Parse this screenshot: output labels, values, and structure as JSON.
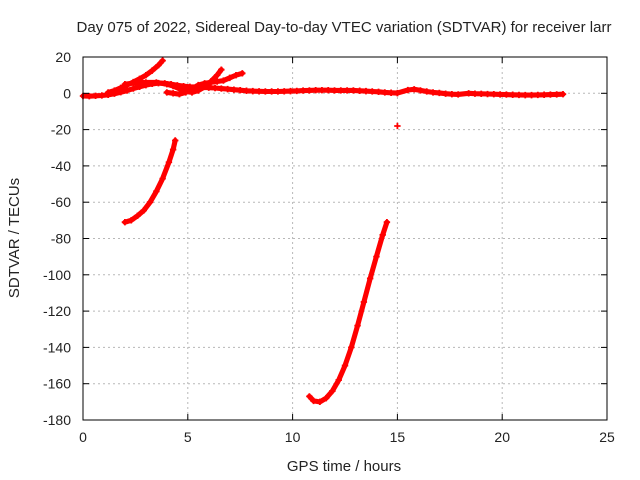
{
  "chart_data": {
    "type": "scatter",
    "title": "Day 075 of 2022, Sidereal Day-to-day VTEC variation (SDTVAR) for receiver larr",
    "xlabel": "GPS time / hours",
    "ylabel": "SDTVAR / TECUs",
    "xlim": [
      0,
      25
    ],
    "ylim": [
      -180,
      20
    ],
    "xticks": [
      "0",
      "5",
      "10",
      "15",
      "20",
      "25"
    ],
    "yticks": [
      "20",
      "0",
      "-20",
      "-40",
      "-60",
      "-80",
      "-100",
      "-120",
      "-140",
      "-160",
      "-180"
    ],
    "grid": true,
    "marker_color": "#ff0000",
    "series": [
      {
        "points": [
          [
            0.0,
            -1.5
          ],
          [
            0.3,
            -1.6
          ],
          [
            0.6,
            -1.4
          ],
          [
            0.9,
            -1.2
          ],
          [
            1.2,
            -0.8
          ],
          [
            1.5,
            -0.2
          ],
          [
            1.8,
            0.6
          ],
          [
            2.1,
            1.5
          ],
          [
            2.4,
            2.6
          ],
          [
            2.7,
            3.6
          ],
          [
            3.0,
            4.5
          ],
          [
            3.3,
            5.2
          ],
          [
            3.6,
            5.6
          ],
          [
            3.9,
            5.5
          ],
          [
            4.2,
            5.0
          ],
          [
            4.5,
            4.4
          ],
          [
            4.8,
            3.9
          ],
          [
            5.1,
            3.6
          ],
          [
            5.4,
            3.5
          ],
          [
            5.7,
            3.3
          ],
          [
            6.0,
            3.1
          ],
          [
            6.3,
            2.9
          ],
          [
            6.6,
            2.6
          ],
          [
            6.9,
            2.3
          ],
          [
            7.2,
            2.0
          ],
          [
            7.5,
            1.7
          ],
          [
            7.8,
            1.4
          ],
          [
            8.1,
            1.2
          ],
          [
            8.4,
            1.1
          ],
          [
            8.7,
            1.0
          ],
          [
            9.0,
            1.0
          ],
          [
            9.3,
            1.0
          ],
          [
            9.6,
            1.1
          ],
          [
            9.9,
            1.2
          ],
          [
            10.2,
            1.3
          ],
          [
            10.5,
            1.5
          ],
          [
            10.8,
            1.6
          ],
          [
            11.1,
            1.7
          ],
          [
            11.4,
            1.7
          ],
          [
            11.7,
            1.7
          ],
          [
            12.0,
            1.6
          ],
          [
            12.3,
            1.6
          ],
          [
            12.6,
            1.6
          ],
          [
            12.9,
            1.6
          ],
          [
            13.2,
            1.4
          ],
          [
            13.5,
            1.2
          ],
          [
            13.8,
            1.0
          ],
          [
            14.1,
            0.8
          ],
          [
            14.4,
            0.5
          ],
          [
            14.7,
            0.3
          ],
          [
            15.0,
            0.1
          ],
          [
            15.5,
            1.8
          ],
          [
            15.8,
            2.2
          ],
          [
            16.1,
            1.6
          ],
          [
            16.4,
            1.0
          ],
          [
            16.7,
            0.5
          ],
          [
            17.0,
            0.2
          ],
          [
            17.3,
            -0.2
          ],
          [
            17.6,
            -0.5
          ],
          [
            17.9,
            -0.6
          ],
          [
            18.4,
            0.0
          ],
          [
            18.7,
            -0.2
          ],
          [
            19.0,
            -0.3
          ],
          [
            19.3,
            -0.4
          ],
          [
            19.6,
            -0.5
          ],
          [
            19.9,
            -0.6
          ],
          [
            20.2,
            -0.7
          ],
          [
            20.5,
            -0.8
          ],
          [
            20.8,
            -0.9
          ],
          [
            21.1,
            -1.0
          ],
          [
            21.4,
            -1.0
          ],
          [
            21.7,
            -0.9
          ],
          [
            22.0,
            -0.8
          ],
          [
            22.3,
            -0.7
          ],
          [
            22.6,
            -0.6
          ],
          [
            22.9,
            -0.5
          ]
        ]
      },
      {
        "points": [
          [
            1.2,
            0.5
          ],
          [
            1.5,
            1.5
          ],
          [
            1.8,
            3.0
          ],
          [
            2.1,
            4.5
          ],
          [
            2.4,
            6.2
          ],
          [
            2.7,
            8.0
          ],
          [
            3.0,
            10.0
          ],
          [
            3.3,
            12.5
          ],
          [
            3.6,
            15.5
          ],
          [
            3.8,
            18.0
          ]
        ]
      },
      {
        "points": [
          [
            2.0,
            5.0
          ],
          [
            2.5,
            5.8
          ],
          [
            3.0,
            6.0
          ],
          [
            3.5,
            6.0
          ],
          [
            4.0,
            5.0
          ],
          [
            4.3,
            4.0
          ],
          [
            4.6,
            2.5
          ],
          [
            4.9,
            1.0
          ],
          [
            5.2,
            0.5
          ],
          [
            5.5,
            1.5
          ],
          [
            5.8,
            3.5
          ],
          [
            6.1,
            6.5
          ],
          [
            6.4,
            10.0
          ],
          [
            6.6,
            13.0
          ]
        ]
      },
      {
        "points": [
          [
            4.0,
            0.5
          ],
          [
            4.3,
            0.0
          ],
          [
            4.6,
            -0.5
          ],
          [
            4.9,
            0.5
          ],
          [
            5.2,
            2.5
          ],
          [
            5.5,
            4.5
          ],
          [
            5.8,
            5.5
          ],
          [
            6.1,
            6.0
          ],
          [
            6.4,
            6.5
          ],
          [
            6.7,
            7.0
          ],
          [
            7.0,
            8.5
          ],
          [
            7.3,
            10.0
          ],
          [
            7.6,
            11.0
          ]
        ]
      },
      {
        "points": [
          [
            2.0,
            -71.0
          ],
          [
            2.3,
            -70.0
          ],
          [
            2.6,
            -67.5
          ],
          [
            2.9,
            -64.5
          ],
          [
            3.2,
            -60.0
          ],
          [
            3.5,
            -54.0
          ],
          [
            3.8,
            -47.0
          ],
          [
            4.1,
            -38.0
          ],
          [
            4.3,
            -31.0
          ],
          [
            4.4,
            -26.0
          ]
        ]
      },
      {
        "points": [
          [
            10.8,
            -167.0
          ],
          [
            11.0,
            -169.5
          ],
          [
            11.3,
            -170.0
          ],
          [
            11.6,
            -168.0
          ],
          [
            11.9,
            -164.0
          ],
          [
            12.2,
            -158.0
          ],
          [
            12.5,
            -150.0
          ],
          [
            12.8,
            -140.0
          ],
          [
            13.1,
            -128.0
          ],
          [
            13.4,
            -115.0
          ],
          [
            13.7,
            -102.0
          ],
          [
            14.0,
            -90.0
          ],
          [
            14.3,
            -78.0
          ],
          [
            14.5,
            -71.0
          ]
        ]
      },
      {
        "points": [
          [
            15.0,
            -18.0
          ]
        ]
      }
    ]
  }
}
